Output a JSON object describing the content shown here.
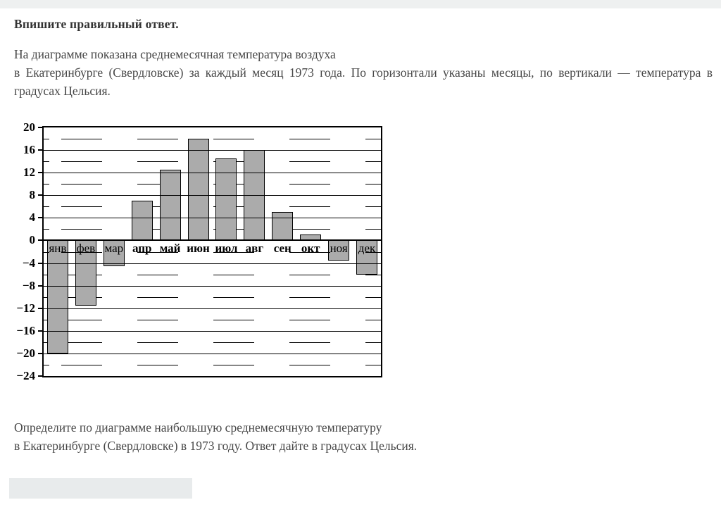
{
  "page": {
    "title": "Впишите правильный ответ.",
    "description_line1": "На диаграмме показана среднемесячная температура воздуха",
    "description_rest": "в Екатеринбурге (Свердловске) за каждый месяц 1973 года. По горизонтали указаны месяцы, по вертикали  —  температура в градусах Цельсия.",
    "question_line1": "Определите по диаграмме наибольшую среднемесячную температуру",
    "question_line2": "в Екатеринбурге (Свердловске) в 1973 году. Ответ дайте в градусах Цельсия.",
    "answer_input": {
      "value": "",
      "placeholder": ""
    }
  },
  "chart_data": {
    "type": "bar",
    "title": "",
    "categories": [
      "янв",
      "фев",
      "мар",
      "апр",
      "май",
      "июн",
      "июл",
      "авг",
      "сен",
      "окт",
      "ноя",
      "дек"
    ],
    "values": [
      -20,
      -11.5,
      -4.5,
      7,
      12.5,
      18,
      14.5,
      16,
      5,
      1,
      -3.5,
      -6
    ],
    "xlabel": "",
    "ylabel": "",
    "ylim": [
      -24,
      20
    ],
    "ytick_step": 4,
    "ytick_labels": [
      "20",
      "16",
      "12",
      "8",
      "4",
      "0",
      "−4",
      "−8",
      "−12",
      "−16",
      "−20",
      "−24"
    ],
    "grid": "solid line every 4 °C, dashed line every 2 °C",
    "legend_position": "none",
    "bar_color": "#ababab",
    "bar_border_color": "#000000"
  }
}
